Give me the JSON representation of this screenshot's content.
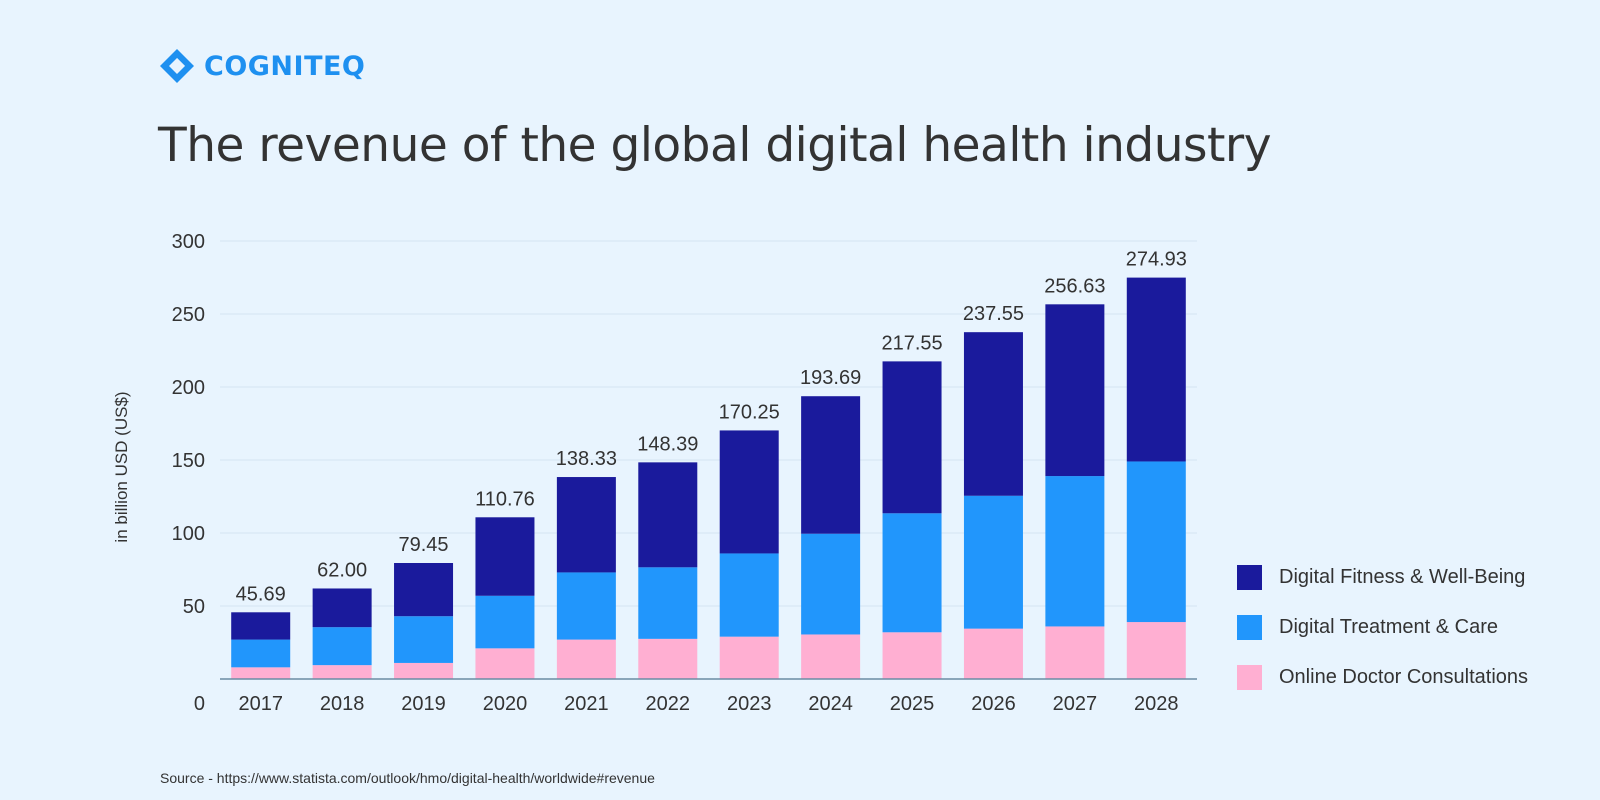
{
  "logo": {
    "name": "COGNITEQ",
    "color": "#1e90f0"
  },
  "title": "The revenue of the global digital health industry",
  "source": "Source - https://www.statista.com/outlook/hmo/digital-health/worldwide#revenue",
  "legend": [
    {
      "label": "Digital Fitness & Well-Being",
      "color": "#1a1a9c"
    },
    {
      "label": "Digital Treatment & Care",
      "color": "#2196fc"
    },
    {
      "label": "Online Doctor Consultations",
      "color": "#ffafd2"
    }
  ],
  "chart_data": {
    "type": "bar",
    "stacked": true,
    "title": "The revenue of the global digital health industry",
    "xlabel": "",
    "ylabel": "in billion USD (US$)",
    "ylim": [
      0,
      300
    ],
    "yticks": [
      0,
      50,
      100,
      150,
      200,
      250,
      300
    ],
    "grid": true,
    "legend_position": "right",
    "categories": [
      "2017",
      "2018",
      "2019",
      "2020",
      "2021",
      "2022",
      "2023",
      "2024",
      "2025",
      "2026",
      "2027",
      "2028"
    ],
    "totals": [
      "45.69",
      "62.00",
      "79.45",
      "110.76",
      "138.33",
      "148.39",
      "170.25",
      "193.69",
      "217.55",
      "237.55",
      "256.63",
      "274.93"
    ],
    "series": [
      {
        "name": "Online Doctor Consultations",
        "color": "#ffafd2",
        "values": [
          8,
          9.5,
          11,
          21,
          27,
          27.5,
          29,
          30.5,
          32,
          34.5,
          36,
          39
        ]
      },
      {
        "name": "Digital Treatment & Care",
        "color": "#2196fc",
        "values": [
          19,
          26,
          32,
          36,
          46,
          49,
          57,
          69,
          81.5,
          91,
          103,
          110
        ]
      },
      {
        "name": "Digital Fitness & Well-Being",
        "color": "#1a1a9c",
        "values": [
          18.69,
          26.5,
          36.45,
          53.76,
          65.33,
          71.89,
          84.25,
          94.19,
          104.05,
          112.05,
          117.63,
          125.93
        ]
      }
    ]
  }
}
